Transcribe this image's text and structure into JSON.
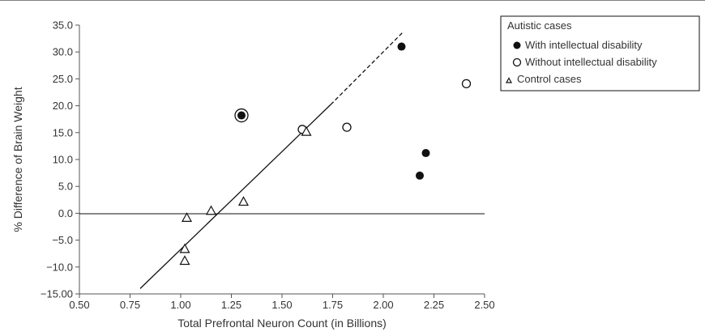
{
  "chart_data": {
    "type": "scatter",
    "title": "",
    "xlabel": "Total Prefrontal Neuron Count (in Billions)",
    "ylabel": "% Difference of Brain Weight",
    "xlim": [
      0.5,
      2.5
    ],
    "ylim": [
      -15.0,
      35.0
    ],
    "x_ticks": [
      0.5,
      0.75,
      1.0,
      1.25,
      1.5,
      1.75,
      2.0,
      2.25,
      2.5
    ],
    "x_tick_labels": [
      "0.50",
      "0.75",
      "1.00",
      "1.25",
      "1.50",
      "1.75",
      "2.00",
      "2.25",
      "2.50"
    ],
    "y_ticks": [
      35,
      30,
      25,
      20,
      15,
      10,
      5,
      0,
      -5,
      -10,
      -15
    ],
    "y_tick_labels": [
      "35.0",
      "30.0",
      "25.0",
      "20.0",
      "15.0",
      "10.0",
      "5.0",
      "0.0",
      "−5.0",
      "−10.0",
      "−15.00"
    ],
    "grid": false,
    "zero_line": true,
    "legend_position": "top-right",
    "legend": {
      "group1_title": "Autistic cases",
      "entries": [
        {
          "label": "With intellectual disability",
          "marker": "filled-circle"
        },
        {
          "label": "Without intellectual disability",
          "marker": "open-circle"
        },
        {
          "label": "Control cases",
          "marker": "open-triangle"
        }
      ]
    },
    "series": [
      {
        "name": "With intellectual disability",
        "marker": "filled-circle",
        "points": [
          {
            "x": 2.09,
            "y": 31.0
          },
          {
            "x": 2.21,
            "y": 11.2
          },
          {
            "x": 2.18,
            "y": 7.0
          },
          {
            "x": 1.3,
            "y": 18.2
          }
        ]
      },
      {
        "name": "Without intellectual disability",
        "marker": "open-circle",
        "points": [
          {
            "x": 1.3,
            "y": 18.2
          },
          {
            "x": 1.6,
            "y": 15.6
          },
          {
            "x": 1.82,
            "y": 16.0
          },
          {
            "x": 2.41,
            "y": 24.1
          }
        ]
      },
      {
        "name": "Control cases",
        "marker": "open-triangle",
        "points": [
          {
            "x": 1.03,
            "y": -0.9
          },
          {
            "x": 1.15,
            "y": 0.4
          },
          {
            "x": 1.31,
            "y": 2.1
          },
          {
            "x": 1.02,
            "y": -6.7
          },
          {
            "x": 1.02,
            "y": -8.9
          },
          {
            "x": 1.62,
            "y": 15.1
          }
        ]
      }
    ],
    "regression": {
      "solid": [
        [
          0.8,
          -14.0
        ],
        [
          1.74,
          20.2
        ]
      ],
      "dashed": [
        [
          1.74,
          20.2
        ],
        [
          2.1,
          33.8
        ]
      ]
    },
    "colors": {
      "ink": "#111111",
      "text": "#333333",
      "axis": "#555555",
      "frame": "#7f7f7f"
    }
  }
}
